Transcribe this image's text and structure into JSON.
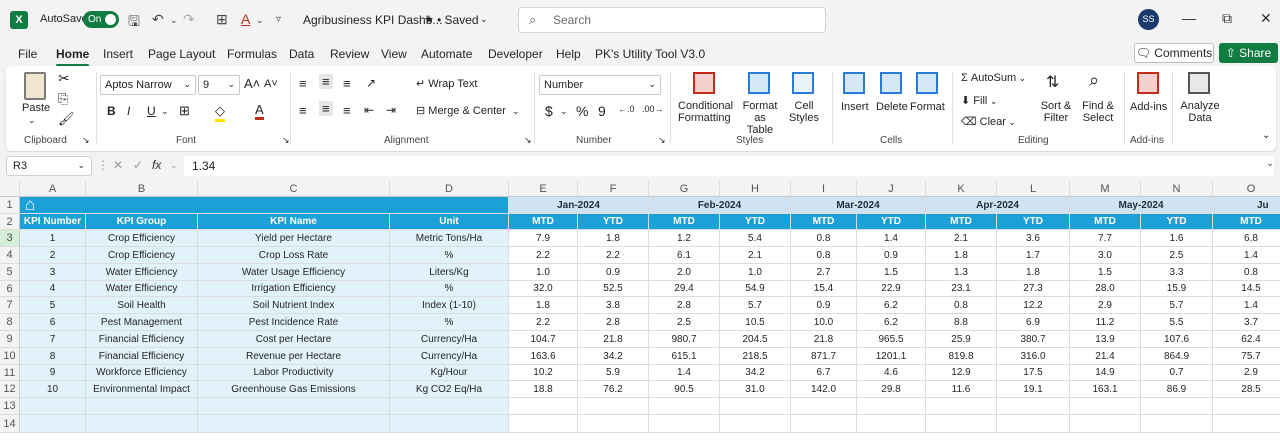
{
  "app": {
    "logo": "X",
    "autosave_label": "AutoSave",
    "autosave_state": "On",
    "doc_title": "Agribusiness KPI Dashb...",
    "saved_status": "• Saved",
    "search_placeholder": "Search",
    "user_initials": "SS"
  },
  "menu": [
    "File",
    "Home",
    "Insert",
    "Page Layout",
    "Formulas",
    "Data",
    "Review",
    "View",
    "Automate",
    "Developer",
    "Help",
    "PK's Utility Tool V3.0"
  ],
  "menu_active": "Home",
  "comments_label": "Comments",
  "share_label": "Share",
  "ribbon": {
    "clipboard": {
      "paste": "Paste",
      "group": "Clipboard"
    },
    "font": {
      "family": "Aptos Narrow",
      "size": "9",
      "group": "Font"
    },
    "alignment": {
      "wrap": "Wrap Text",
      "merge": "Merge & Center",
      "group": "Alignment"
    },
    "number": {
      "format": "Number",
      "group": "Number"
    },
    "styles": {
      "cond": "Conditional",
      "cond2": "Formatting",
      "fmt": "Format as",
      "fmt2": "Table",
      "cell": "Cell",
      "cell2": "Styles",
      "group": "Styles"
    },
    "cells": {
      "insert": "Insert",
      "delete": "Delete",
      "format": "Format",
      "group": "Cells"
    },
    "editing": {
      "autosum": "AutoSum",
      "fill": "Fill",
      "clear": "Clear",
      "sort": "Sort &",
      "sort2": "Filter",
      "find": "Find &",
      "find2": "Select",
      "group": "Editing"
    },
    "addins": {
      "label": "Add-ins",
      "group": "Add-ins"
    },
    "analyze": {
      "label": "Analyze",
      "label2": "Data"
    }
  },
  "formula_bar": {
    "name_box": "R3",
    "fx": "fx",
    "value": "1.34"
  },
  "columns": [
    "A",
    "B",
    "C",
    "D",
    "E",
    "F",
    "G",
    "H",
    "I",
    "J",
    "K",
    "L",
    "M",
    "N",
    "O"
  ],
  "rows": [
    "1",
    "2",
    "3",
    "4",
    "5",
    "6",
    "7",
    "8",
    "9",
    "10",
    "11",
    "12",
    "13",
    "14"
  ],
  "months": [
    "Jan-2024",
    "Feb-2024",
    "Mar-2024",
    "Apr-2024",
    "May-2024",
    "Ju"
  ],
  "headers": [
    "KPI Number",
    "KPI Group",
    "KPI Name",
    "Unit",
    "MTD",
    "YTD",
    "MTD",
    "YTD",
    "MTD",
    "YTD",
    "MTD",
    "YTD",
    "MTD",
    "YTD",
    "MTD"
  ],
  "table": [
    [
      "1",
      "Crop Efficiency",
      "Yield per Hectare",
      "Metric Tons/Ha",
      "7.9",
      "1.8",
      "1.2",
      "5.4",
      "0.8",
      "1.4",
      "2.1",
      "3.6",
      "7.7",
      "1.6",
      "6.8"
    ],
    [
      "2",
      "Crop Efficiency",
      "Crop Loss Rate",
      "%",
      "2.2",
      "2.2",
      "6.1",
      "2.1",
      "0.8",
      "0.9",
      "1.8",
      "1.7",
      "3.0",
      "2.5",
      "1.4"
    ],
    [
      "3",
      "Water Efficiency",
      "Water Usage Efficiency",
      "Liters/Kg",
      "1.0",
      "0.9",
      "2.0",
      "1.0",
      "2.7",
      "1.5",
      "1.3",
      "1.8",
      "1.5",
      "3.3",
      "0.8"
    ],
    [
      "4",
      "Water Efficiency",
      "Irrigation Efficiency",
      "%",
      "32.0",
      "52.5",
      "29.4",
      "54.9",
      "15.4",
      "22.9",
      "23.1",
      "27.3",
      "28.0",
      "15.9",
      "14.5"
    ],
    [
      "5",
      "Soil Health",
      "Soil Nutrient Index",
      "Index (1-10)",
      "1.8",
      "3.8",
      "2.8",
      "5.7",
      "0.9",
      "6.2",
      "0.8",
      "12.2",
      "2.9",
      "5.7",
      "1.4"
    ],
    [
      "6",
      "Pest Management",
      "Pest Incidence Rate",
      "%",
      "2.2",
      "2.8",
      "2.5",
      "10.5",
      "10.0",
      "6.2",
      "8.8",
      "6.9",
      "11.2",
      "5.5",
      "3.7"
    ],
    [
      "7",
      "Financial Efficiency",
      "Cost per Hectare",
      "Currency/Ha",
      "104.7",
      "21.8",
      "980.7",
      "204.5",
      "21.8",
      "965.5",
      "25.9",
      "380.7",
      "13.9",
      "107.6",
      "62.4"
    ],
    [
      "8",
      "Financial Efficiency",
      "Revenue per Hectare",
      "Currency/Ha",
      "163.6",
      "34.2",
      "615.1",
      "218.5",
      "871.7",
      "1201.1",
      "819.8",
      "316.0",
      "21.4",
      "864.9",
      "75.7"
    ],
    [
      "9",
      "Workforce Efficiency",
      "Labor Productivity",
      "Kg/Hour",
      "10.2",
      "5.9",
      "1.4",
      "34.2",
      "6.7",
      "4.6",
      "12.9",
      "17.5",
      "14.9",
      "0.7",
      "2.9"
    ],
    [
      "10",
      "Environmental Impact",
      "Greenhouse Gas Emissions",
      "Kg CO2 Eq/Ha",
      "18.8",
      "76.2",
      "90.5",
      "31.0",
      "142.0",
      "29.8",
      "11.6",
      "19.1",
      "163.1",
      "86.9",
      "28.5"
    ]
  ]
}
